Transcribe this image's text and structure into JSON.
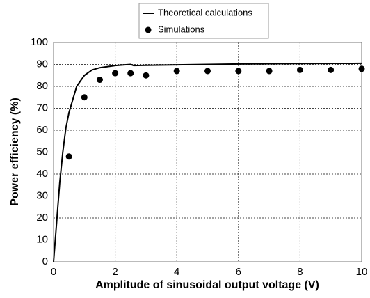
{
  "chart_data": {
    "type": "line",
    "xlabel": "Amplitude of sinusoidal output voltage (V)",
    "ylabel": "Power efficiency (%)",
    "xlim": [
      0,
      10
    ],
    "xticks": [
      0,
      2,
      4,
      6,
      8,
      10
    ],
    "ylim": [
      0,
      100
    ],
    "yticks": [
      0,
      10,
      20,
      30,
      40,
      50,
      60,
      70,
      80,
      90,
      100
    ],
    "grid": true,
    "legend": "top",
    "series": [
      {
        "name": "Theoretical calculations",
        "type": "line",
        "color": "#000000",
        "x": [
          0,
          0.1,
          0.2,
          0.3,
          0.4,
          0.5,
          0.75,
          1,
          1.25,
          1.5,
          2,
          2.5,
          2.6,
          3,
          4,
          6,
          8,
          10
        ],
        "values": [
          0,
          18,
          36,
          50,
          61,
          68,
          80,
          85,
          87.5,
          88.5,
          89.5,
          90,
          89.5,
          89.6,
          89.8,
          90.2,
          90.4,
          90.5
        ]
      },
      {
        "name": "Simulations",
        "type": "scatter",
        "color": "#000000",
        "x": [
          0.5,
          1,
          1.5,
          2,
          2.5,
          3,
          4,
          5,
          6,
          7,
          8,
          9,
          10
        ],
        "values": [
          48,
          75,
          83,
          86,
          86,
          85,
          87,
          87,
          87,
          87,
          87.5,
          87.5,
          88
        ]
      }
    ]
  }
}
